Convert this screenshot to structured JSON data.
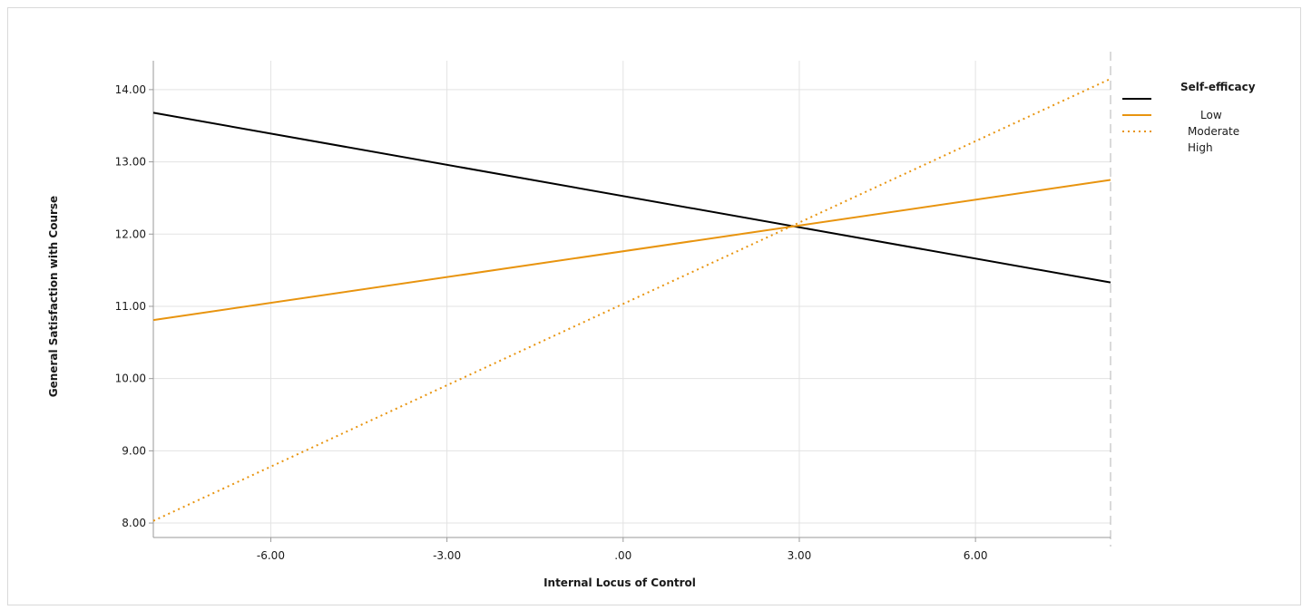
{
  "chart_data": {
    "type": "line",
    "xlabel": "Internal Locus of Control",
    "ylabel": "General Satisfaction with Course",
    "xlim": [
      -8.0,
      8.3
    ],
    "ylim": [
      7.8,
      14.4
    ],
    "x_ticks": [
      -6,
      -3,
      0,
      3,
      6
    ],
    "x_tick_labels": [
      "-6.00",
      "-3.00",
      ".00",
      "3.00",
      "6.00"
    ],
    "y_ticks": [
      8,
      9,
      10,
      11,
      12,
      13,
      14
    ],
    "y_tick_labels": [
      "8.00",
      "9.00",
      "10.00",
      "11.00",
      "12.00",
      "13.00",
      "14.00"
    ],
    "grid": true,
    "legend": {
      "title": "Self-efficacy",
      "placement": "right",
      "labels": [
        "Low",
        "Moderate",
        "High"
      ]
    },
    "series": [
      {
        "name": "Low",
        "color": "#000000",
        "style": "solid",
        "x": [
          -8.0,
          8.3
        ],
        "y": [
          13.68,
          11.33
        ]
      },
      {
        "name": "Moderate",
        "color": "#e8940f",
        "style": "solid",
        "x": [
          -8.0,
          8.3
        ],
        "y": [
          10.81,
          12.75
        ]
      },
      {
        "name": "High",
        "color": "#e8940f",
        "style": "dotted",
        "x": [
          -8.0,
          8.3
        ],
        "y": [
          8.03,
          14.15
        ]
      }
    ],
    "reference_line": {
      "x": 8.3,
      "style": "dashed",
      "color": "#b5b5b5"
    }
  }
}
